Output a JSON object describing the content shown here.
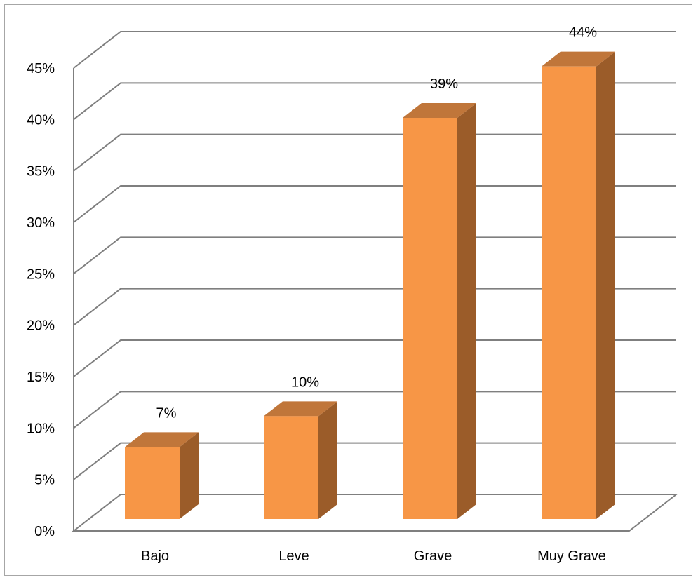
{
  "chart_data": {
    "type": "bar",
    "style": "3d-column",
    "title": "",
    "xlabel": "",
    "ylabel": "",
    "categories": [
      "Bajo",
      "Leve",
      "Grave",
      "Muy Grave"
    ],
    "values": [
      7,
      10,
      39,
      44
    ],
    "data_labels": [
      "7%",
      "10%",
      "39%",
      "44%"
    ],
    "y_ticks": [
      "0%",
      "5%",
      "10%",
      "15%",
      "20%",
      "25%",
      "30%",
      "35%",
      "40%",
      "45%"
    ],
    "ylim": [
      0,
      45
    ],
    "grid": true,
    "legend": "none",
    "colors": {
      "bar_front": "#f79646",
      "bar_top": "#c0763a",
      "bar_side": "#9b5c29",
      "grid": "#7f7f7f",
      "border": "#a6a6a6"
    }
  }
}
